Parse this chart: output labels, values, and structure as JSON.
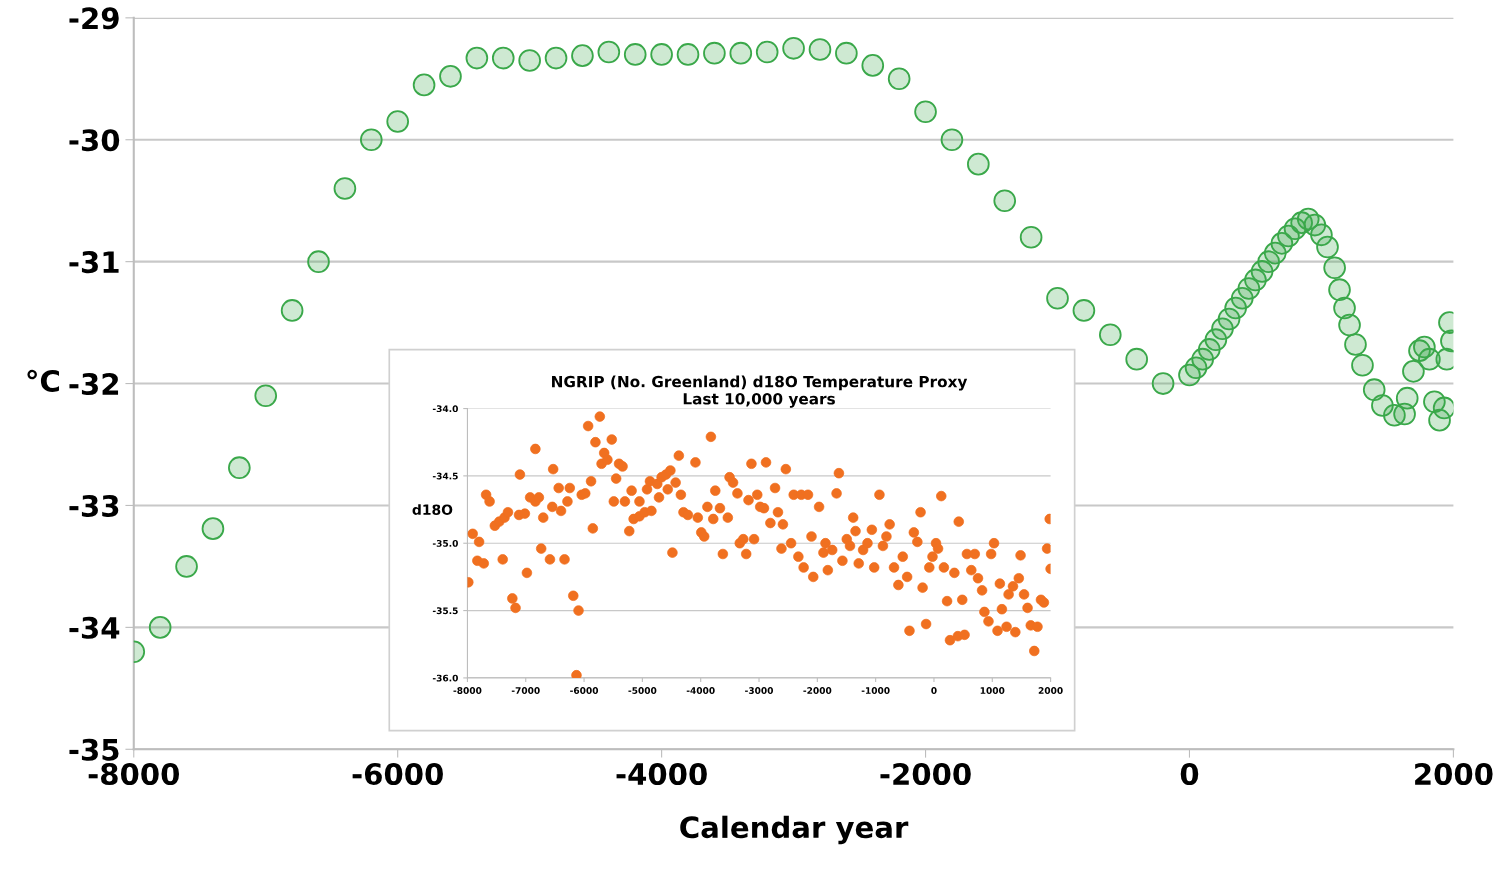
{
  "chart_data": [
    {
      "type": "scatter",
      "xlabel": "Calendar year",
      "ylabel": "°C",
      "xlim": [
        -8000,
        2000
      ],
      "ylim": [
        -35,
        -29
      ],
      "xticks": [
        -8000,
        -6000,
        -4000,
        -2000,
        0,
        2000
      ],
      "yticks": [
        -35,
        -34,
        -33,
        -32,
        -31,
        -30,
        -29
      ],
      "grid": "y",
      "marker": "circle",
      "legend": false,
      "series": [
        {
          "color": "#3aa84a",
          "x": [
            -8000,
            -7800,
            -7600,
            -7400,
            -7200,
            -7000,
            -6800,
            -6600,
            -6400,
            -6200,
            -6000,
            -5800,
            -5600,
            -5400,
            -5200,
            -5000,
            -4800,
            -4600,
            -4400,
            -4200,
            -4000,
            -3800,
            -3600,
            -3400,
            -3200,
            -3000,
            -2800,
            -2600,
            -2400,
            -2200,
            -2000,
            -1800,
            -1600,
            -1400,
            -1200,
            -1000,
            -800,
            -600,
            -400,
            -200,
            0,
            50,
            100,
            150,
            200,
            250,
            300,
            350,
            400,
            450,
            500,
            550,
            600,
            650,
            700,
            750,
            800,
            850,
            900,
            950,
            1000,
            1046,
            1100,
            1137,
            1175,
            1213,
            1258,
            1311,
            1400,
            1462,
            1553,
            1630,
            1650,
            1697,
            1743,
            1780,
            1818,
            1856,
            1895,
            1930,
            1950,
            1970,
            1985
          ],
          "values": [
            -34.2,
            -34.0,
            -33.5,
            -33.19,
            -32.69,
            -32.1,
            -31.4,
            -31.0,
            -30.4,
            -30.0,
            -29.85,
            -29.55,
            -29.48,
            -29.33,
            -29.33,
            -29.35,
            -29.33,
            -29.31,
            -29.28,
            -29.3,
            -29.3,
            -29.3,
            -29.29,
            -29.29,
            -29.28,
            -29.25,
            -29.26,
            -29.29,
            -29.39,
            -29.5,
            -29.77,
            -30.0,
            -30.2,
            -30.5,
            -30.8,
            -31.3,
            -31.4,
            -31.6,
            -31.8,
            -32.0,
            -31.93,
            -31.87,
            -31.8,
            -31.72,
            -31.64,
            -31.55,
            -31.47,
            -31.38,
            -31.3,
            -31.22,
            -31.15,
            -31.08,
            -31.0,
            -30.93,
            -30.85,
            -30.79,
            -30.73,
            -30.68,
            -30.65,
            -30.7,
            -30.78,
            -30.88,
            -31.05,
            -31.23,
            -31.38,
            -31.52,
            -31.68,
            -31.85,
            -32.05,
            -32.18,
            -32.26,
            -32.25,
            -32.12,
            -31.9,
            -31.73,
            -31.7,
            -31.8,
            -32.15,
            -32.3,
            -32.2,
            -31.8,
            -31.5,
            -31.65
          ]
        }
      ]
    },
    {
      "type": "scatter",
      "title": "NGRIP (No. Greenland) d18O Temperature Proxy\nLast 10,000 years",
      "ylabel": "d18O",
      "xlim": [
        -8000,
        2000
      ],
      "ylim": [
        -36,
        -34
      ],
      "xticks": [
        -8000,
        -7000,
        -6000,
        -5000,
        -4000,
        -3000,
        -2000,
        -1000,
        0,
        1000,
        2000
      ],
      "yticks": [
        {
          "value": -36,
          "label": "-36.0"
        },
        {
          "value": -35.5,
          "label": "-35.5"
        },
        {
          "value": -35,
          "label": "-35.0"
        },
        {
          "value": -34.5,
          "label": "-34.5"
        },
        {
          "value": -34,
          "label": "-34.0"
        }
      ],
      "grid": "y",
      "marker": "circle",
      "legend": false,
      "series": [
        {
          "color": "#f07020",
          "x": [
            -7985,
            -7910,
            -7800,
            -7830,
            -7720,
            -7680,
            -7620,
            -7530,
            -7455,
            -7365,
            -7395,
            -7305,
            -7230,
            -7175,
            -7100,
            -7115,
            -7015,
            -6980,
            -6925,
            -6835,
            -6835,
            -6775,
            -6700,
            -6735,
            -6585,
            -6530,
            -6545,
            -6435,
            -6395,
            -6335,
            -6285,
            -6245,
            -6185,
            -6130,
            -6095,
            -6040,
            -5980,
            -5930,
            -5880,
            -5850,
            -5805,
            -5730,
            -5700,
            -5655,
            -5600,
            -5525,
            -5490,
            -5450,
            -5400,
            -5340,
            -5300,
            -5225,
            -5185,
            -5150,
            -5050,
            -5050,
            -4960,
            -4920,
            -4870,
            -4845,
            -4745,
            -4715,
            -4670,
            -4595,
            -4565,
            -4520,
            -4485,
            -4430,
            -4375,
            -4340,
            -4295,
            -4220,
            -4090,
            -4050,
            -3990,
            -3940,
            -3885,
            -3825,
            -3785,
            -3750,
            -3670,
            -3620,
            -3535,
            -3505,
            -3445,
            -3370,
            -3330,
            -3270,
            -3220,
            -3180,
            -3130,
            -3085,
            -3030,
            -2980,
            -2915,
            -2880,
            -2805,
            -2725,
            -2675,
            -2590,
            -2540,
            -2615,
            -2450,
            -2405,
            -2325,
            -2275,
            -2235,
            -2160,
            -2100,
            -2070,
            -1970,
            -1895,
            -1860,
            -1820,
            -1745,
            -1670,
            -1630,
            -1570,
            -1495,
            -1440,
            -1385,
            -1345,
            -1290,
            -1215,
            -1140,
            -1065,
            -1025,
            -935,
            -875,
            -815,
            -760,
            -685,
            -610,
            -535,
            -460,
            -420,
            -345,
            -285,
            -230,
            -195,
            -135,
            -80,
            -25,
            35,
            70,
            125,
            170,
            225,
            275,
            350,
            410,
            425,
            485,
            525,
            565,
            640,
            700,
            755,
            825,
            865,
            935,
            980,
            1030,
            1090,
            1130,
            1165,
            1245,
            1280,
            1355,
            1395,
            1455,
            1485,
            1545,
            1605,
            1660,
            1720,
            1775,
            1835,
            1885,
            1940,
            1985,
            2000
          ],
          "values": [
            -35.29,
            -34.93,
            -34.99,
            -35.13,
            -35.15,
            -34.64,
            -34.69,
            -34.87,
            -34.84,
            -34.81,
            -35.12,
            -34.77,
            -35.41,
            -35.48,
            -34.49,
            -34.79,
            -34.78,
            -35.22,
            -34.66,
            -34.3,
            -34.69,
            -34.66,
            -34.81,
            -35.04,
            -35.12,
            -34.45,
            -34.73,
            -34.59,
            -34.76,
            -35.12,
            -34.69,
            -34.59,
            -35.39,
            -35.98,
            -35.5,
            -34.64,
            -34.63,
            -34.13,
            -34.54,
            -34.89,
            -34.25,
            -34.06,
            -34.41,
            -34.33,
            -34.38,
            -34.23,
            -34.69,
            -34.52,
            -34.41,
            -34.43,
            -34.69,
            -34.91,
            -34.61,
            -34.82,
            -34.69,
            -34.8,
            -34.77,
            -34.6,
            -34.54,
            -34.76,
            -34.56,
            -34.66,
            -34.51,
            -34.49,
            -34.6,
            -34.46,
            -35.07,
            -34.55,
            -34.35,
            -34.64,
            -34.77,
            -34.79,
            -34.4,
            -34.81,
            -34.92,
            -34.95,
            -34.73,
            -34.21,
            -34.82,
            -34.61,
            -34.74,
            -35.08,
            -34.81,
            -34.51,
            -34.55,
            -34.63,
            -35.0,
            -34.97,
            -35.08,
            -34.68,
            -34.41,
            -34.97,
            -34.64,
            -34.73,
            -34.74,
            -34.4,
            -34.85,
            -34.59,
            -34.77,
            -34.86,
            -34.45,
            -35.04,
            -35.0,
            -34.64,
            -35.1,
            -34.64,
            -35.18,
            -34.64,
            -34.95,
            -35.25,
            -34.73,
            -35.07,
            -35.0,
            -35.2,
            -35.05,
            -34.63,
            -34.48,
            -35.13,
            -34.97,
            -35.02,
            -34.81,
            -34.91,
            -35.15,
            -35.05,
            -35.0,
            -34.9,
            -35.18,
            -34.64,
            -35.02,
            -34.95,
            -34.86,
            -35.18,
            -35.31,
            -35.1,
            -35.25,
            -35.65,
            -34.92,
            -34.99,
            -34.77,
            -35.33,
            -35.6,
            -35.18,
            -35.1,
            -35.0,
            -35.04,
            -34.65,
            -35.18,
            -35.43,
            -35.72,
            -35.22,
            -35.69,
            -34.84,
            -35.42,
            -35.68,
            -35.08,
            -35.2,
            -35.08,
            -35.26,
            -35.35,
            -35.51,
            -35.58,
            -35.08,
            -35.0,
            -35.65,
            -35.3,
            -35.49,
            -35.62,
            -35.38,
            -35.32,
            -35.66,
            -35.26,
            -35.09,
            -35.38,
            -35.48,
            -35.61,
            -35.8,
            -35.62,
            -35.42,
            -35.44,
            -35.04,
            -34.82,
            -35.19
          ]
        }
      ]
    }
  ]
}
